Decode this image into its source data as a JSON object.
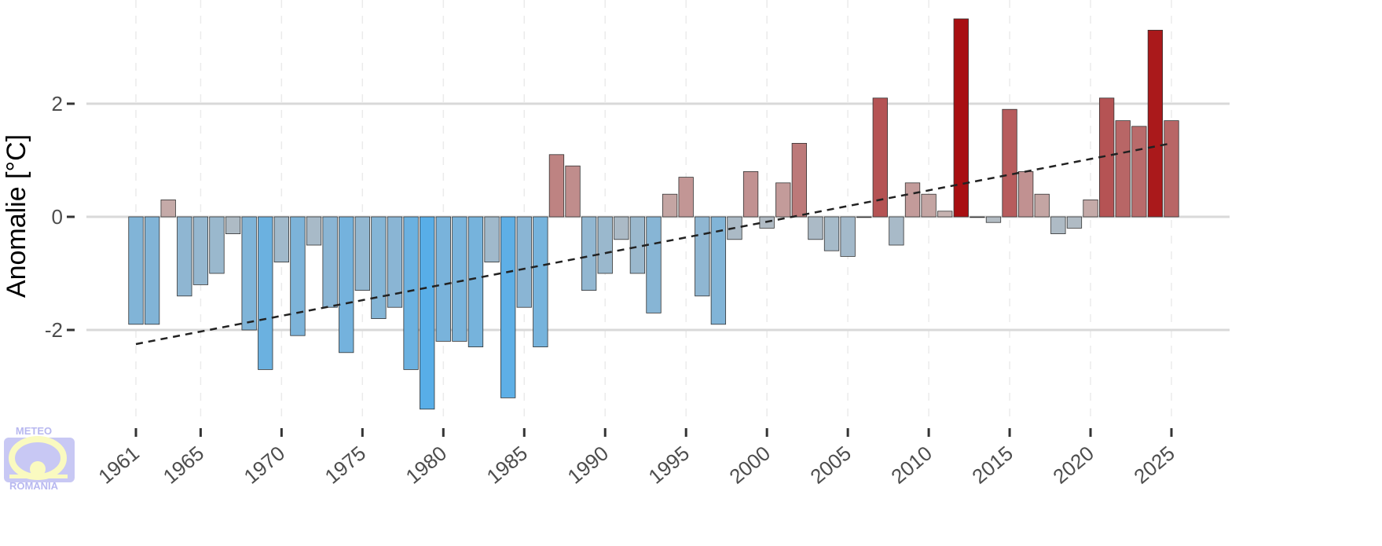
{
  "chart_data": {
    "type": "bar",
    "title": "",
    "xlabel": "",
    "ylabel": "Anomalie [°C]",
    "ylim": [
      -3.6,
      3.6
    ],
    "yticks": [
      -2,
      0,
      2
    ],
    "ytick_labels": [
      "-2",
      "0",
      "2"
    ],
    "xticks": [
      1961,
      1965,
      1970,
      1975,
      1980,
      1985,
      1990,
      1995,
      2000,
      2005,
      2010,
      2015,
      2020,
      2025
    ],
    "xtick_labels": [
      "1961",
      "1965",
      "1970",
      "1975",
      "1980",
      "1985",
      "1990",
      "1995",
      "2000",
      "2005",
      "2010",
      "2015",
      "2020",
      "2025"
    ],
    "grid": true,
    "x": [
      1961,
      1962,
      1963,
      1964,
      1965,
      1966,
      1967,
      1968,
      1969,
      1970,
      1971,
      1972,
      1973,
      1974,
      1975,
      1976,
      1977,
      1978,
      1979,
      1980,
      1981,
      1982,
      1983,
      1984,
      1985,
      1986,
      1987,
      1988,
      1989,
      1990,
      1991,
      1992,
      1993,
      1994,
      1995,
      1996,
      1997,
      1998,
      1999,
      2000,
      2001,
      2002,
      2003,
      2004,
      2005,
      2006,
      2007,
      2008,
      2009,
      2010,
      2011,
      2012,
      2013,
      2014,
      2015,
      2016,
      2017,
      2018,
      2019,
      2020,
      2021,
      2022,
      2023,
      2024,
      2025
    ],
    "values": [
      -1.9,
      -1.9,
      0.3,
      -1.4,
      -1.2,
      -1.0,
      -0.3,
      -2.0,
      -2.7,
      -0.8,
      -2.1,
      -0.5,
      -1.6,
      -2.4,
      -1.3,
      -1.8,
      -1.6,
      -2.7,
      -3.4,
      -2.2,
      -2.2,
      -2.3,
      -0.8,
      -3.2,
      -1.6,
      -2.3,
      1.1,
      0.9,
      -1.3,
      -1.0,
      -0.4,
      -1.0,
      -1.7,
      0.4,
      0.7,
      -1.4,
      -1.9,
      -0.4,
      0.8,
      -0.2,
      0.6,
      1.3,
      -0.4,
      -0.6,
      -0.7,
      0.0,
      2.1,
      -0.5,
      0.6,
      0.4,
      0.1,
      3.5,
      0.0,
      -0.1,
      1.9,
      0.8,
      0.4,
      -0.3,
      -0.2,
      0.3,
      2.1,
      1.7,
      1.6,
      3.3,
      1.7
    ],
    "trend": {
      "x": [
        1961,
        2025
      ],
      "y": [
        -2.25,
        1.3
      ],
      "style": "dashed"
    },
    "colors": {
      "neg_low": "#b6bcc2",
      "neg_high": "#58aee8",
      "pos_low": "#c8b8b6",
      "pos_high": "#a80f12",
      "grid": "#d9d9d9",
      "minor_grid": "#ebebeb"
    }
  },
  "logo": {
    "top": "METEO",
    "bottom": "ROMANIA"
  }
}
